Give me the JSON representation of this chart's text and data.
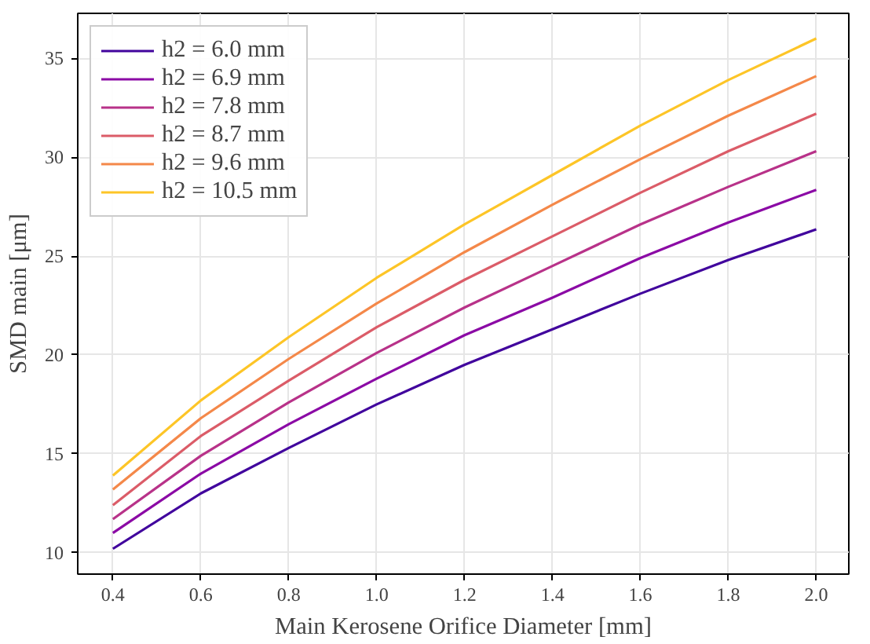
{
  "chart_data": {
    "type": "line",
    "xlabel": "Main Kerosene Orifice Diameter [mm]",
    "ylabel": "SMD main [μm]",
    "x": [
      0.4,
      0.6,
      0.8,
      1.0,
      1.2,
      1.4,
      1.6,
      1.8,
      2.0
    ],
    "series": [
      {
        "name": "h2 = 6.0 mm",
        "color": "#41049d",
        "values": [
          10.2,
          13.0,
          15.3,
          17.5,
          19.5,
          21.3,
          23.1,
          24.8,
          26.35
        ]
      },
      {
        "name": "h2 = 6.9 mm",
        "color": "#8b0aa5",
        "values": [
          11.0,
          14.0,
          16.5,
          18.8,
          21.0,
          22.9,
          24.9,
          26.7,
          28.35
        ]
      },
      {
        "name": "h2 = 7.8 mm",
        "color": "#b83289",
        "values": [
          11.7,
          14.9,
          17.6,
          20.1,
          22.4,
          24.5,
          26.6,
          28.5,
          30.3
        ]
      },
      {
        "name": "h2 = 8.7 mm",
        "color": "#db5c68",
        "values": [
          12.4,
          15.9,
          18.7,
          21.4,
          23.8,
          26.0,
          28.2,
          30.3,
          32.2
        ]
      },
      {
        "name": "h2 = 9.6 mm",
        "color": "#f48849",
        "values": [
          13.2,
          16.8,
          19.8,
          22.6,
          25.2,
          27.6,
          29.9,
          32.1,
          34.1
        ]
      },
      {
        "name": "h2 = 10.5 mm",
        "color": "#fdc527",
        "values": [
          13.9,
          17.7,
          20.9,
          23.9,
          26.6,
          29.1,
          31.6,
          33.9,
          36.0
        ]
      }
    ],
    "xlim": [
      0.32,
      2.074
    ],
    "ylim": [
      8.92,
      37.27
    ],
    "xticks": [
      {
        "value": 0.4,
        "label": "0.4"
      },
      {
        "value": 0.6,
        "label": "0.6"
      },
      {
        "value": 0.8,
        "label": "0.8"
      },
      {
        "value": 1.0,
        "label": "1.0"
      },
      {
        "value": 1.2,
        "label": "1.2"
      },
      {
        "value": 1.4,
        "label": "1.4"
      },
      {
        "value": 1.6,
        "label": "1.6"
      },
      {
        "value": 1.8,
        "label": "1.8"
      },
      {
        "value": 2.0,
        "label": "2.0"
      }
    ],
    "yticks": [
      10,
      15,
      20,
      25,
      30,
      35
    ],
    "grid": true,
    "legend": "top left",
    "line_style": "solid",
    "marker": "none"
  }
}
